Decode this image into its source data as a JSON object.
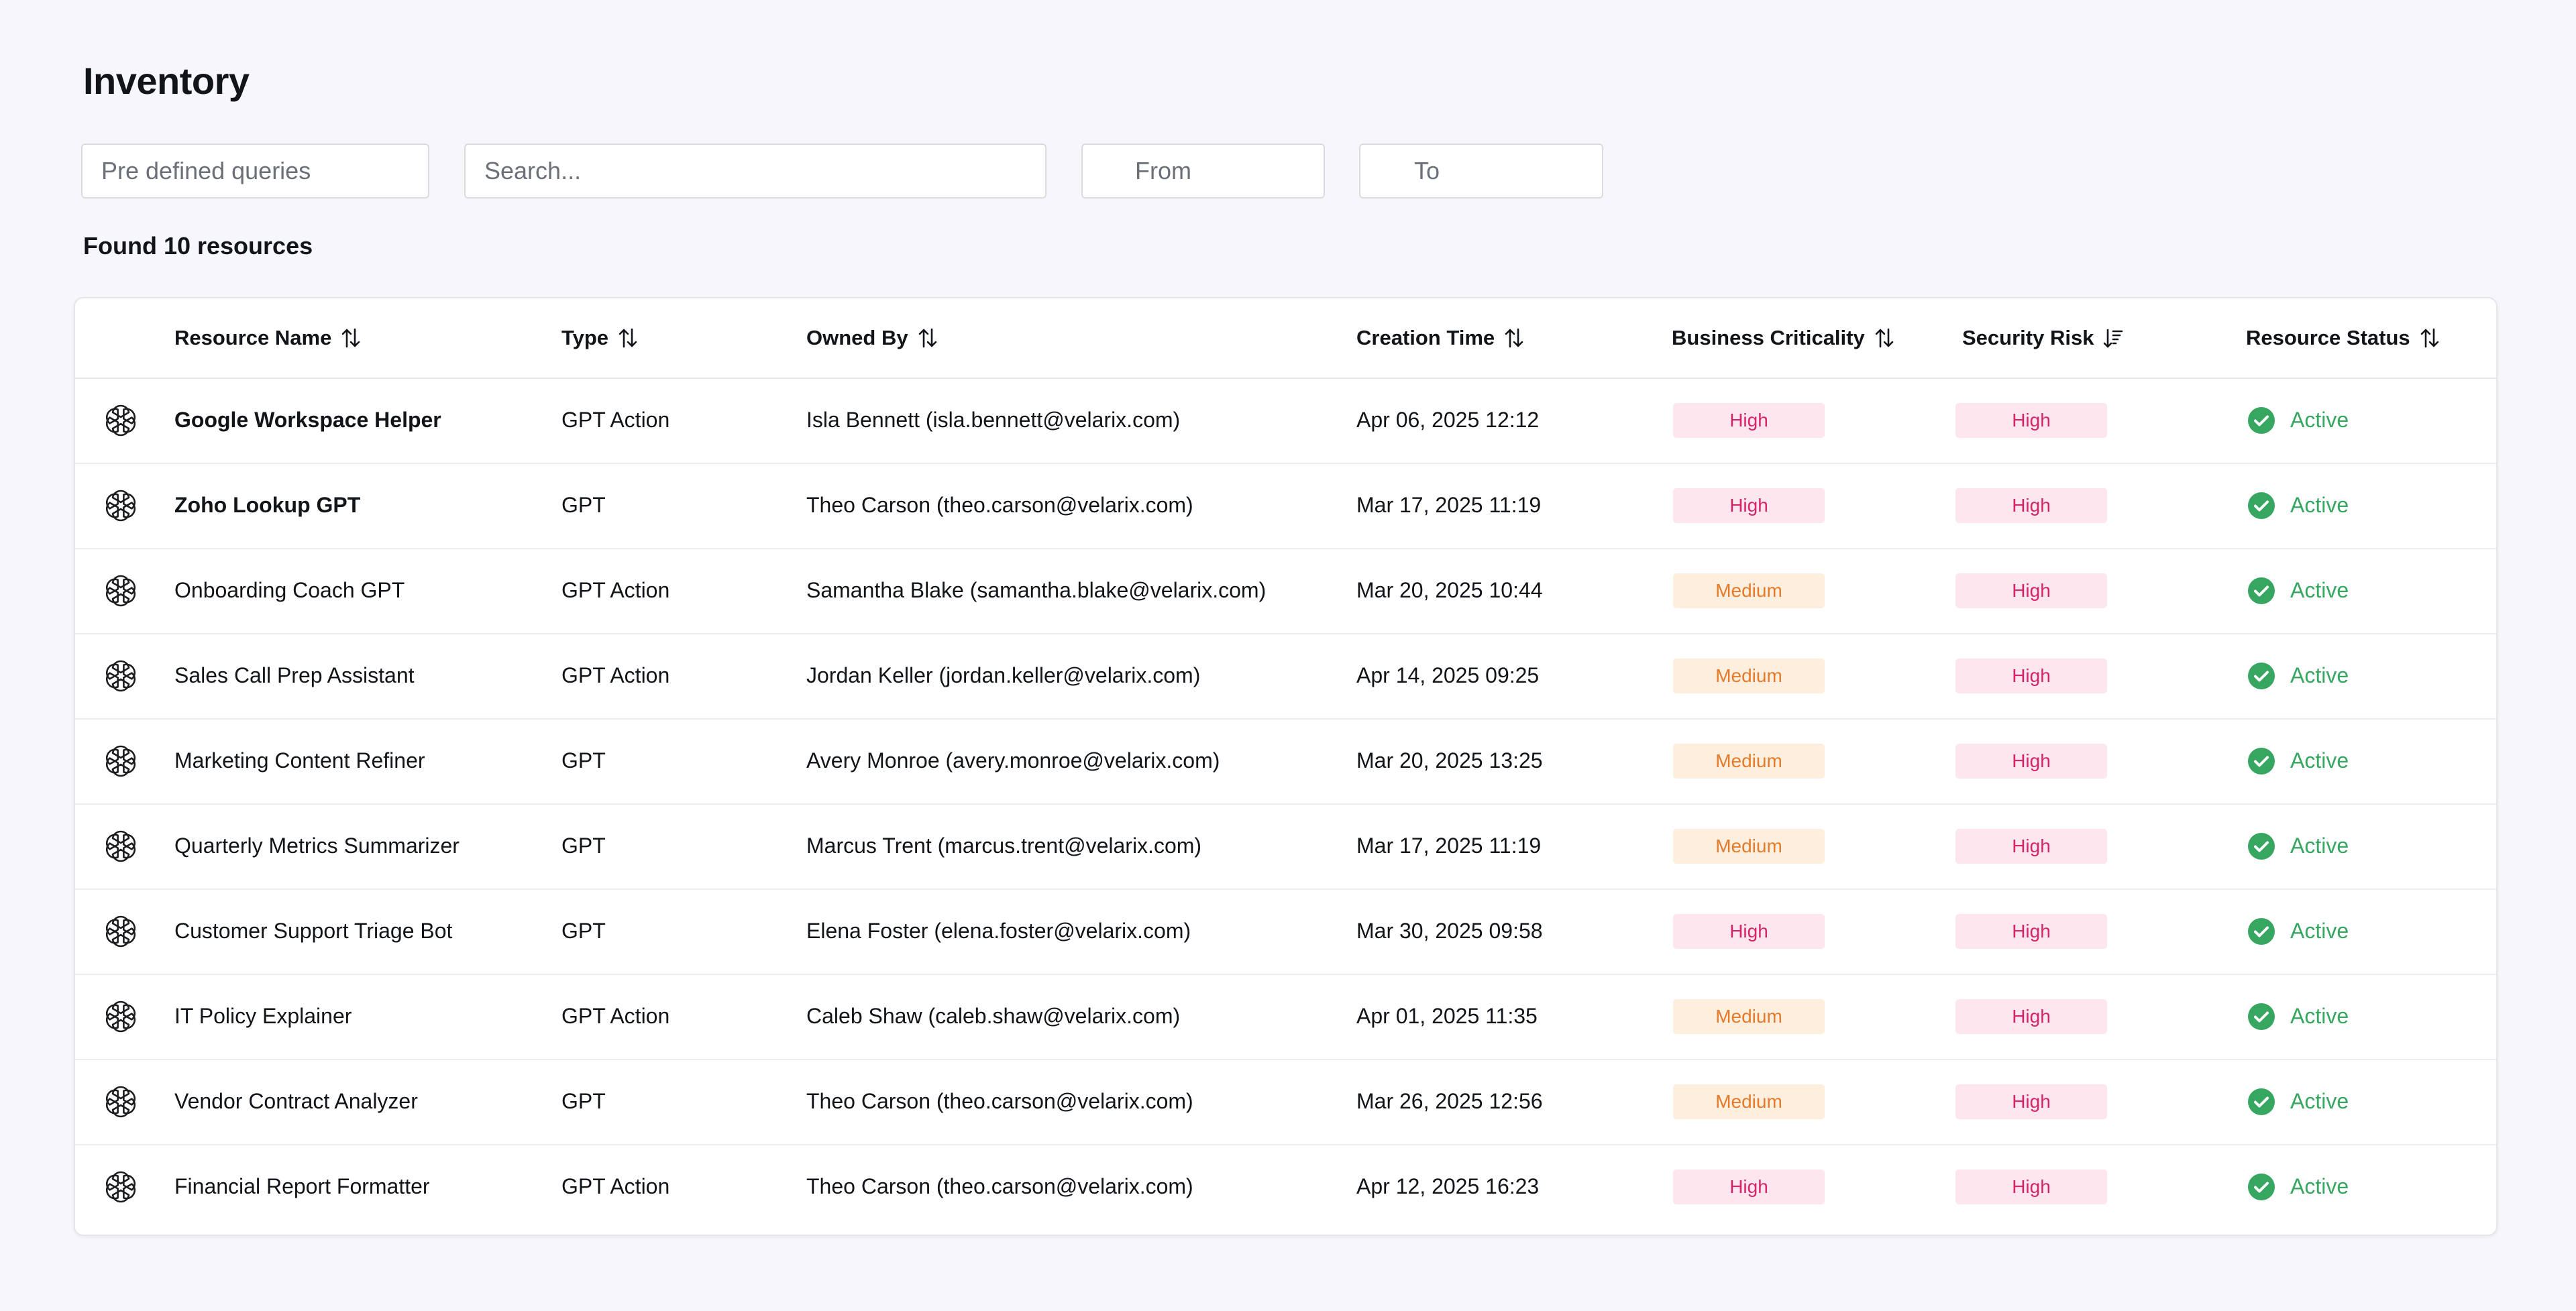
{
  "page": {
    "title": "Inventory"
  },
  "filters": {
    "predefined_placeholder": "Pre defined queries",
    "search_placeholder": "Search...",
    "from_placeholder": "From",
    "to_placeholder": "To"
  },
  "result_count": "Found 10 resources",
  "colors": {
    "high_bg": "#fde6ee",
    "high_text": "#d6246a",
    "medium_bg": "#fdeede",
    "medium_text": "#e37b2b",
    "active_green": "#36a661"
  },
  "table": {
    "columns": [
      {
        "key": "name",
        "label": "Resource Name",
        "sort_icon": "sort-arrows-icon"
      },
      {
        "key": "type",
        "label": "Type",
        "sort_icon": "sort-arrows-icon"
      },
      {
        "key": "owner",
        "label": "Owned By",
        "sort_icon": "sort-arrows-icon"
      },
      {
        "key": "created",
        "label": "Creation Time",
        "sort_icon": "sort-arrows-icon"
      },
      {
        "key": "criticality",
        "label": "Business Criticality",
        "sort_icon": "sort-arrows-icon"
      },
      {
        "key": "risk",
        "label": "Security Risk",
        "sort_icon": "sort-descending-icon"
      },
      {
        "key": "status",
        "label": "Resource Status",
        "sort_icon": "sort-arrows-icon"
      }
    ],
    "rows": [
      {
        "icon": "openai-logo-icon",
        "name": "Google Workspace Helper",
        "bold": true,
        "type": "GPT Action",
        "owner": "Isla Bennett (isla.bennett@velarix.com)",
        "created": "Apr 06, 2025 12:12",
        "criticality": "High",
        "risk": "High",
        "status": "Active"
      },
      {
        "icon": "openai-logo-icon",
        "name": "Zoho Lookup GPT",
        "bold": true,
        "type": "GPT",
        "owner": "Theo Carson (theo.carson@velarix.com)",
        "created": "Mar 17, 2025 11:19",
        "criticality": "High",
        "risk": "High",
        "status": "Active"
      },
      {
        "icon": "openai-logo-icon",
        "name": "Onboarding Coach GPT",
        "bold": false,
        "type": "GPT Action",
        "owner": "Samantha Blake (samantha.blake@velarix.com)",
        "created": "Mar 20, 2025 10:44",
        "criticality": "Medium",
        "risk": "High",
        "status": "Active"
      },
      {
        "icon": "openai-logo-icon",
        "name": "Sales Call Prep Assistant",
        "bold": false,
        "type": "GPT Action",
        "owner": "Jordan Keller (jordan.keller@velarix.com)",
        "created": "Apr 14, 2025 09:25",
        "criticality": "Medium",
        "risk": "High",
        "status": "Active"
      },
      {
        "icon": "openai-logo-icon",
        "name": "Marketing Content Refiner",
        "bold": false,
        "type": "GPT",
        "owner": "Avery Monroe (avery.monroe@velarix.com)",
        "created": "Mar 20, 2025 13:25",
        "criticality": "Medium",
        "risk": "High",
        "status": "Active"
      },
      {
        "icon": "openai-logo-icon",
        "name": "Quarterly Metrics Summarizer",
        "bold": false,
        "type": "GPT",
        "owner": "Marcus Trent (marcus.trent@velarix.com)",
        "created": "Mar 17, 2025 11:19",
        "criticality": "Medium",
        "risk": "High",
        "status": "Active"
      },
      {
        "icon": "openai-logo-icon",
        "name": "Customer Support Triage Bot",
        "bold": false,
        "type": "GPT",
        "owner": "Elena Foster (elena.foster@velarix.com)",
        "created": "Mar 30, 2025 09:58",
        "criticality": "High",
        "risk": "High",
        "status": "Active"
      },
      {
        "icon": "openai-logo-icon",
        "name": "IT Policy Explainer",
        "bold": false,
        "type": "GPT Action",
        "owner": "Caleb Shaw (caleb.shaw@velarix.com)",
        "created": "Apr 01, 2025 11:35",
        "criticality": "Medium",
        "risk": "High",
        "status": "Active"
      },
      {
        "icon": "openai-logo-icon",
        "name": "Vendor Contract Analyzer",
        "bold": false,
        "type": "GPT",
        "owner": "Theo Carson (theo.carson@velarix.com)",
        "created": "Mar 26, 2025 12:56",
        "criticality": "Medium",
        "risk": "High",
        "status": "Active"
      },
      {
        "icon": "openai-logo-icon",
        "name": "Financial Report Formatter",
        "bold": false,
        "type": "GPT Action",
        "owner": "Theo Carson (theo.carson@velarix.com)",
        "created": "Apr 12, 2025 16:23",
        "criticality": "High",
        "risk": "High",
        "status": "Active"
      }
    ]
  }
}
